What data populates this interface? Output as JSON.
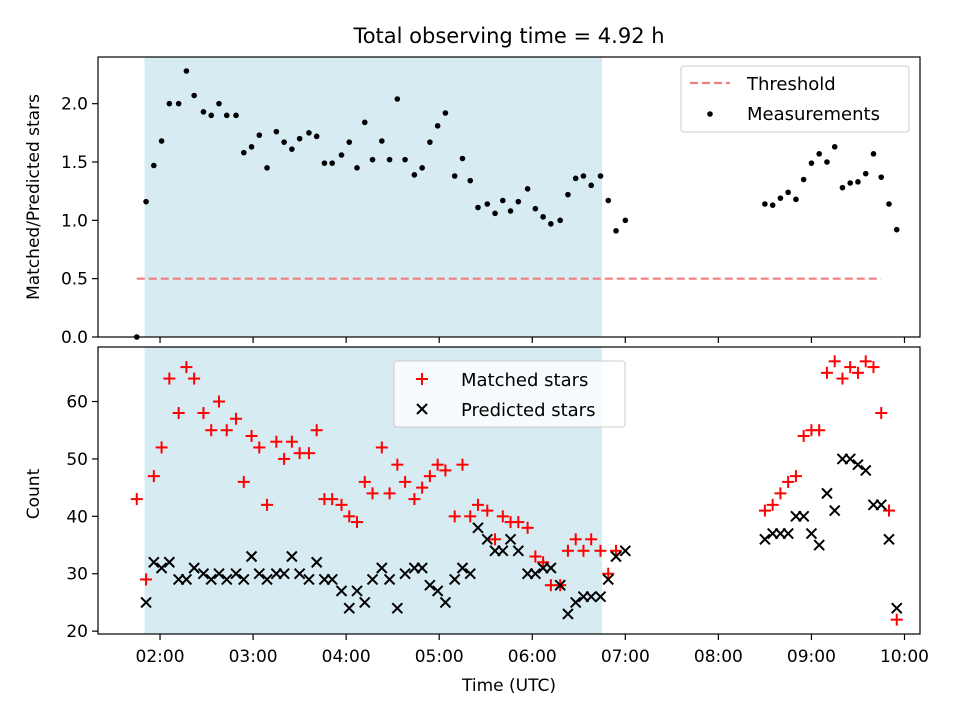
{
  "chart_data": [
    {
      "type": "scatter",
      "title": "Total observing time = 4.92 h",
      "xlabel": "",
      "ylabel": "Matched/Predicted stars",
      "ylim": [
        0,
        2.4
      ],
      "y_ticks": [
        0.0,
        0.5,
        1.0,
        1.5,
        2.0
      ],
      "y_tick_labels": [
        "0.0",
        "0.5",
        "1.0",
        "1.5",
        "2.0"
      ],
      "shaded_span": [
        "01:50",
        "06:45"
      ],
      "legend_position": "top-right",
      "threshold": {
        "name": "Threshold",
        "y": 0.5,
        "x_start": "01:45",
        "x_end": "09:45",
        "color": "#f08080"
      },
      "series": [
        {
          "name": "Measurements",
          "color": "#000000",
          "points": [
            [
              "01:45",
              0.0
            ],
            [
              "01:51",
              1.16
            ],
            [
              "01:56",
              1.47
            ],
            [
              "02:01",
              1.68
            ],
            [
              "02:06",
              2.0
            ],
            [
              "02:12",
              2.0
            ],
            [
              "02:17",
              2.28
            ],
            [
              "02:22",
              2.07
            ],
            [
              "02:28",
              1.93
            ],
            [
              "02:33",
              1.9
            ],
            [
              "02:38",
              2.0
            ],
            [
              "02:43",
              1.9
            ],
            [
              "02:49",
              1.9
            ],
            [
              "02:54",
              1.58
            ],
            [
              "02:59",
              1.63
            ],
            [
              "03:04",
              1.73
            ],
            [
              "03:09",
              1.45
            ],
            [
              "03:15",
              1.76
            ],
            [
              "03:20",
              1.67
            ],
            [
              "03:25",
              1.61
            ],
            [
              "03:30",
              1.7
            ],
            [
              "03:36",
              1.75
            ],
            [
              "03:41",
              1.72
            ],
            [
              "03:46",
              1.49
            ],
            [
              "03:51",
              1.49
            ],
            [
              "03:57",
              1.56
            ],
            [
              "04:02",
              1.67
            ],
            [
              "04:07",
              1.45
            ],
            [
              "04:12",
              1.84
            ],
            [
              "04:17",
              1.52
            ],
            [
              "04:23",
              1.68
            ],
            [
              "04:28",
              1.52
            ],
            [
              "04:33",
              2.04
            ],
            [
              "04:38",
              1.52
            ],
            [
              "04:44",
              1.39
            ],
            [
              "04:49",
              1.45
            ],
            [
              "04:54",
              1.67
            ],
            [
              "04:59",
              1.81
            ],
            [
              "05:04",
              1.92
            ],
            [
              "05:10",
              1.38
            ],
            [
              "05:15",
              1.53
            ],
            [
              "05:20",
              1.34
            ],
            [
              "05:25",
              1.11
            ],
            [
              "05:31",
              1.14
            ],
            [
              "05:36",
              1.06
            ],
            [
              "05:41",
              1.17
            ],
            [
              "05:46",
              1.08
            ],
            [
              "05:51",
              1.16
            ],
            [
              "05:57",
              1.27
            ],
            [
              "06:02",
              1.1
            ],
            [
              "06:07",
              1.03
            ],
            [
              "06:12",
              0.97
            ],
            [
              "06:18",
              1.0
            ],
            [
              "06:23",
              1.22
            ],
            [
              "06:28",
              1.36
            ],
            [
              "06:33",
              1.38
            ],
            [
              "06:38",
              1.3
            ],
            [
              "06:44",
              1.38
            ],
            [
              "06:49",
              1.17
            ],
            [
              "06:54",
              0.91
            ],
            [
              "07:00",
              1.0
            ],
            [
              "08:30",
              1.14
            ],
            [
              "08:35",
              1.13
            ],
            [
              "08:40",
              1.19
            ],
            [
              "08:45",
              1.24
            ],
            [
              "08:50",
              1.18
            ],
            [
              "08:55",
              1.35
            ],
            [
              "09:00",
              1.49
            ],
            [
              "09:05",
              1.57
            ],
            [
              "09:10",
              1.5
            ],
            [
              "09:15",
              1.63
            ],
            [
              "09:20",
              1.28
            ],
            [
              "09:25",
              1.32
            ],
            [
              "09:30",
              1.33
            ],
            [
              "09:35",
              1.4
            ],
            [
              "09:40",
              1.57
            ],
            [
              "09:45",
              1.37
            ],
            [
              "09:50",
              1.14
            ],
            [
              "09:55",
              0.92
            ]
          ]
        }
      ]
    },
    {
      "type": "scatter",
      "title": "",
      "xlabel": "Time (UTC)",
      "ylabel": "Count",
      "ylim": [
        19.5,
        69.5
      ],
      "y_ticks": [
        20,
        30,
        40,
        50,
        60
      ],
      "y_tick_labels": [
        "20",
        "30",
        "40",
        "50",
        "60"
      ],
      "x_ticks": [
        "02:00",
        "03:00",
        "04:00",
        "05:00",
        "06:00",
        "07:00",
        "08:00",
        "09:00",
        "10:00"
      ],
      "x_tick_labels": [
        "02:00",
        "03:00",
        "04:00",
        "05:00",
        "06:00",
        "07:00",
        "08:00",
        "09:00",
        "10:00"
      ],
      "xlim": [
        "01:20",
        "10:10"
      ],
      "shaded_span": [
        "01:50",
        "06:45"
      ],
      "legend_position": "top-center",
      "series": [
        {
          "name": "Matched stars",
          "marker": "plus",
          "color": "#ff0000",
          "points": [
            [
              "01:45",
              43
            ],
            [
              "01:51",
              29
            ],
            [
              "01:56",
              47
            ],
            [
              "02:01",
              52
            ],
            [
              "02:06",
              64
            ],
            [
              "02:12",
              58
            ],
            [
              "02:17",
              66
            ],
            [
              "02:22",
              64
            ],
            [
              "02:28",
              58
            ],
            [
              "02:33",
              55
            ],
            [
              "02:38",
              60
            ],
            [
              "02:43",
              55
            ],
            [
              "02:49",
              57
            ],
            [
              "02:54",
              46
            ],
            [
              "02:59",
              54
            ],
            [
              "03:04",
              52
            ],
            [
              "03:09",
              42
            ],
            [
              "03:15",
              53
            ],
            [
              "03:20",
              50
            ],
            [
              "03:25",
              53
            ],
            [
              "03:30",
              51
            ],
            [
              "03:36",
              51
            ],
            [
              "03:41",
              55
            ],
            [
              "03:46",
              43
            ],
            [
              "03:51",
              43
            ],
            [
              "03:57",
              42
            ],
            [
              "04:02",
              40
            ],
            [
              "04:07",
              39
            ],
            [
              "04:12",
              46
            ],
            [
              "04:17",
              44
            ],
            [
              "04:23",
              52
            ],
            [
              "04:28",
              44
            ],
            [
              "04:33",
              49
            ],
            [
              "04:38",
              46
            ],
            [
              "04:44",
              43
            ],
            [
              "04:49",
              45
            ],
            [
              "04:54",
              47
            ],
            [
              "04:59",
              49
            ],
            [
              "05:04",
              48
            ],
            [
              "05:10",
              40
            ],
            [
              "05:15",
              49
            ],
            [
              "05:20",
              40
            ],
            [
              "05:25",
              42
            ],
            [
              "05:31",
              41
            ],
            [
              "05:36",
              36
            ],
            [
              "05:41",
              40
            ],
            [
              "05:46",
              39
            ],
            [
              "05:51",
              39
            ],
            [
              "05:57",
              38
            ],
            [
              "06:02",
              33
            ],
            [
              "06:07",
              32
            ],
            [
              "06:12",
              28
            ],
            [
              "06:18",
              28
            ],
            [
              "06:23",
              34
            ],
            [
              "06:28",
              36
            ],
            [
              "06:33",
              34
            ],
            [
              "06:38",
              36
            ],
            [
              "06:44",
              34
            ],
            [
              "06:49",
              30
            ],
            [
              "06:54",
              34
            ],
            [
              "08:30",
              41
            ],
            [
              "08:35",
              42
            ],
            [
              "08:40",
              44
            ],
            [
              "08:45",
              46
            ],
            [
              "08:50",
              47
            ],
            [
              "08:55",
              54
            ],
            [
              "09:00",
              55
            ],
            [
              "09:05",
              55
            ],
            [
              "09:10",
              65
            ],
            [
              "09:15",
              67
            ],
            [
              "09:20",
              64
            ],
            [
              "09:25",
              66
            ],
            [
              "09:30",
              65
            ],
            [
              "09:35",
              67
            ],
            [
              "09:40",
              66
            ],
            [
              "09:45",
              58
            ],
            [
              "09:50",
              41
            ],
            [
              "09:55",
              22
            ]
          ]
        },
        {
          "name": "Predicted stars",
          "marker": "x",
          "color": "#000000",
          "points": [
            [
              "01:51",
              25
            ],
            [
              "01:56",
              32
            ],
            [
              "02:01",
              31
            ],
            [
              "02:06",
              32
            ],
            [
              "02:12",
              29
            ],
            [
              "02:17",
              29
            ],
            [
              "02:22",
              31
            ],
            [
              "02:28",
              30
            ],
            [
              "02:33",
              29
            ],
            [
              "02:38",
              30
            ],
            [
              "02:43",
              29
            ],
            [
              "02:49",
              30
            ],
            [
              "02:54",
              29
            ],
            [
              "02:59",
              33
            ],
            [
              "03:04",
              30
            ],
            [
              "03:09",
              29
            ],
            [
              "03:15",
              30
            ],
            [
              "03:20",
              30
            ],
            [
              "03:25",
              33
            ],
            [
              "03:30",
              30
            ],
            [
              "03:36",
              29
            ],
            [
              "03:41",
              32
            ],
            [
              "03:46",
              29
            ],
            [
              "03:51",
              29
            ],
            [
              "03:57",
              27
            ],
            [
              "04:02",
              24
            ],
            [
              "04:07",
              27
            ],
            [
              "04:12",
              25
            ],
            [
              "04:17",
              29
            ],
            [
              "04:23",
              31
            ],
            [
              "04:28",
              29
            ],
            [
              "04:33",
              24
            ],
            [
              "04:38",
              30
            ],
            [
              "04:44",
              31
            ],
            [
              "04:49",
              31
            ],
            [
              "04:54",
              28
            ],
            [
              "04:59",
              27
            ],
            [
              "05:04",
              25
            ],
            [
              "05:10",
              29
            ],
            [
              "05:15",
              31
            ],
            [
              "05:20",
              30
            ],
            [
              "05:25",
              38
            ],
            [
              "05:31",
              36
            ],
            [
              "05:36",
              34
            ],
            [
              "05:41",
              34
            ],
            [
              "05:46",
              36
            ],
            [
              "05:51",
              34
            ],
            [
              "05:57",
              30
            ],
            [
              "06:02",
              30
            ],
            [
              "06:07",
              31
            ],
            [
              "06:12",
              31
            ],
            [
              "06:18",
              28
            ],
            [
              "06:23",
              23
            ],
            [
              "06:28",
              25
            ],
            [
              "06:33",
              26
            ],
            [
              "06:38",
              26
            ],
            [
              "06:44",
              26
            ],
            [
              "06:49",
              29
            ],
            [
              "06:54",
              33
            ],
            [
              "07:00",
              34
            ],
            [
              "08:30",
              36
            ],
            [
              "08:35",
              37
            ],
            [
              "08:40",
              37
            ],
            [
              "08:45",
              37
            ],
            [
              "08:50",
              40
            ],
            [
              "08:55",
              40
            ],
            [
              "09:00",
              37
            ],
            [
              "09:05",
              35
            ],
            [
              "09:10",
              44
            ],
            [
              "09:15",
              41
            ],
            [
              "09:20",
              50
            ],
            [
              "09:25",
              50
            ],
            [
              "09:30",
              49
            ],
            [
              "09:35",
              48
            ],
            [
              "09:40",
              42
            ],
            [
              "09:45",
              42
            ],
            [
              "09:50",
              36
            ],
            [
              "09:55",
              24
            ]
          ]
        }
      ]
    }
  ]
}
